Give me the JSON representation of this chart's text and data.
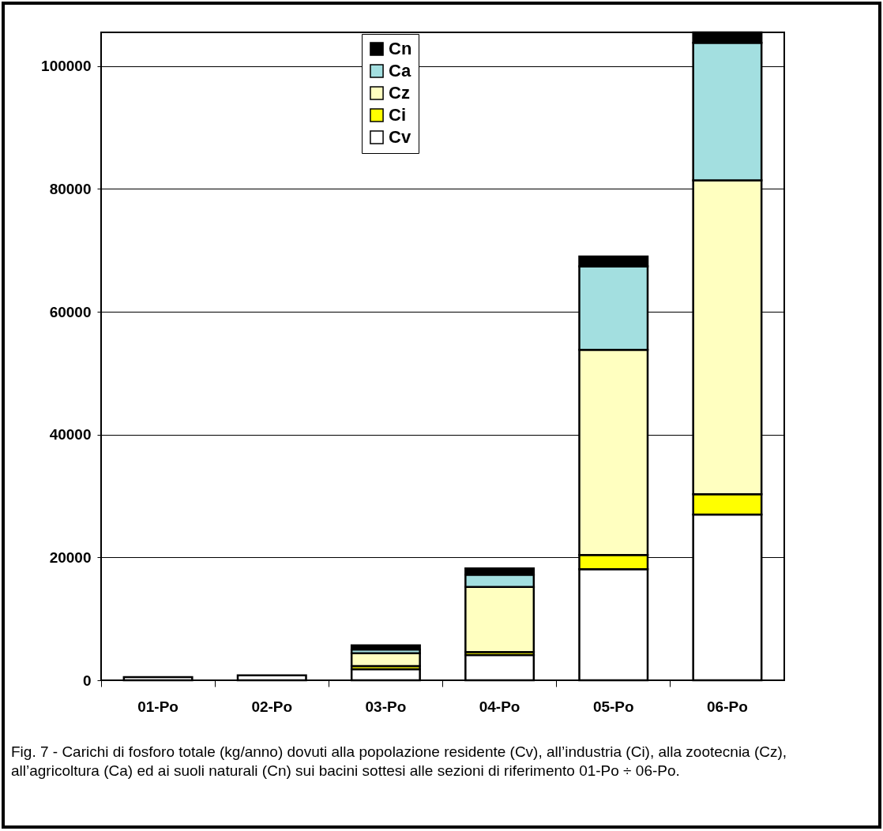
{
  "chart_data": {
    "type": "bar",
    "stacked": true,
    "categories": [
      "01-Po",
      "02-Po",
      "03-Po",
      "04-Po",
      "05-Po",
      "06-Po"
    ],
    "series": [
      {
        "name": "Cv",
        "color": "#ffffff",
        "values": [
          500,
          800,
          1800,
          4100,
          18100,
          27000
        ]
      },
      {
        "name": "Ci",
        "color": "#ffff00",
        "values": [
          null,
          null,
          500,
          500,
          2300,
          3300
        ]
      },
      {
        "name": "Cz",
        "color": "#ffffc0",
        "values": [
          null,
          null,
          2100,
          10600,
          33400,
          51100
        ]
      },
      {
        "name": "Ca",
        "color": "#a3dfe0",
        "values": [
          null,
          null,
          600,
          2000,
          13600,
          22400
        ]
      },
      {
        "name": "Cn",
        "color": "#000000",
        "values": [
          null,
          null,
          700,
          1000,
          1600,
          1700
        ]
      }
    ],
    "ylim": [
      0,
      105500
    ],
    "yticks": [
      0,
      20000,
      40000,
      60000,
      80000,
      100000
    ],
    "grid": "y",
    "legend": "top",
    "annotations": [
      "Fig. 7 - Carichi di fosforo totale (kg/anno) dovuti alla popolazione residente (Cv), all’industria (Ci), alla zootecnia (Cz), all’agricoltura (Ca) ed ai suoli naturali (Cn) sui bacini sottesi alle sezioni di riferimento 01-Po ÷ 06-Po."
    ]
  }
}
